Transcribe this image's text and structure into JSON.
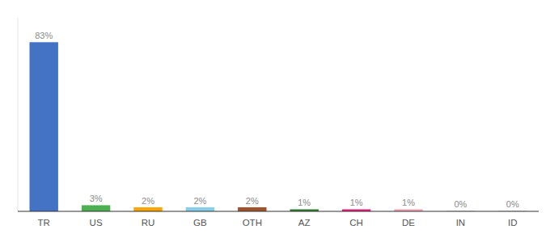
{
  "chart_data": {
    "type": "bar",
    "categories": [
      "TR",
      "US",
      "RU",
      "GB",
      "OTH",
      "AZ",
      "CH",
      "DE",
      "IN",
      "ID"
    ],
    "values": [
      83,
      3,
      2,
      2,
      2,
      1,
      1,
      1,
      0.3,
      0.3
    ],
    "value_labels": [
      "83%",
      "3%",
      "2%",
      "2%",
      "2%",
      "1%",
      "1%",
      "1%",
      "0%",
      "0%"
    ],
    "colors": [
      "#4472C4",
      "#4CAF50",
      "#FFA500",
      "#87CEEB",
      "#A0522D",
      "#2E7D32",
      "#E91E7A",
      "#F4A0B5",
      "#cccccc",
      "#cccccc"
    ],
    "ylim": [
      0,
      95
    ],
    "data_labels": true,
    "tick_labels": "x",
    "grid": false
  }
}
